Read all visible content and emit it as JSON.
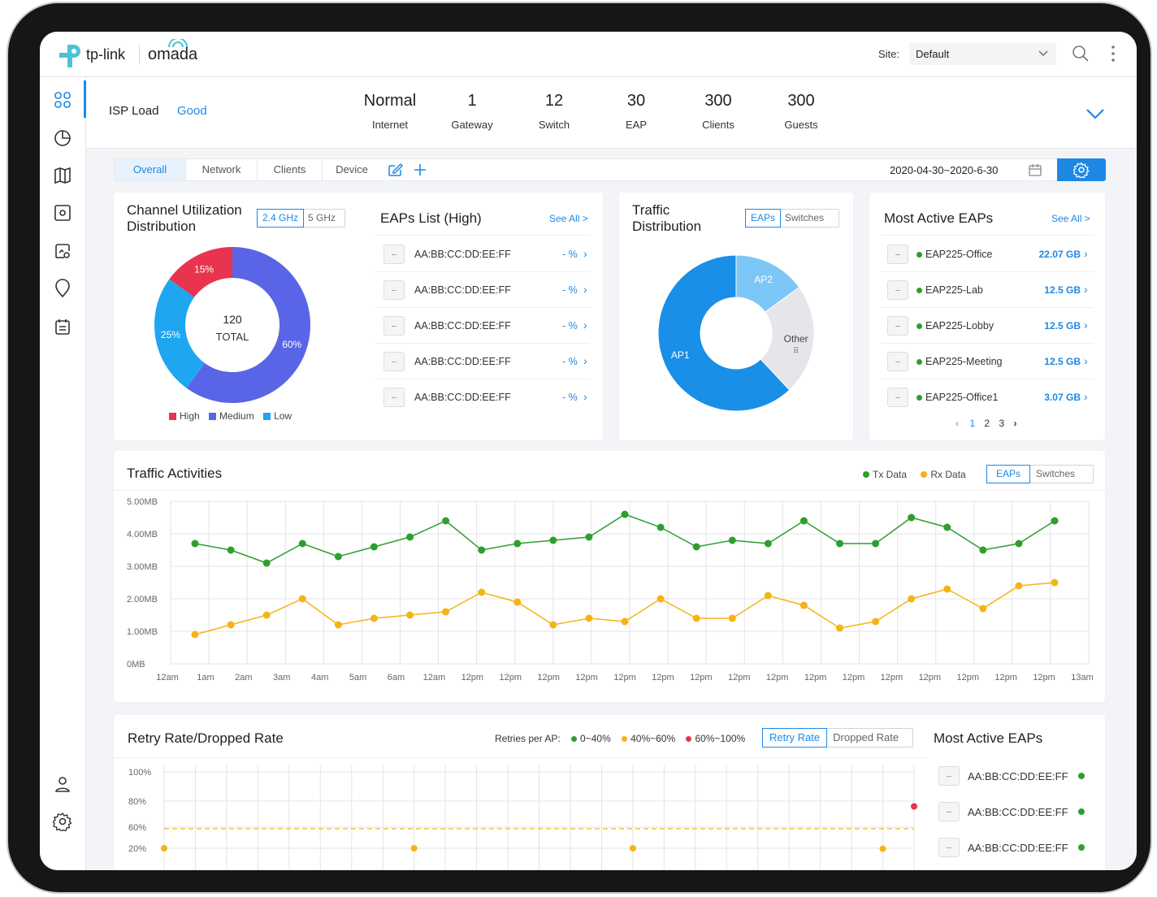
{
  "brand": {
    "logo_text": "tp-link",
    "product": "omada"
  },
  "header": {
    "site_label": "Site:",
    "site_value": "Default"
  },
  "isp": {
    "label": "ISP Load",
    "status": "Good"
  },
  "stats": [
    {
      "value": "Normal",
      "label": "Internet"
    },
    {
      "value": "1",
      "label": "Gateway"
    },
    {
      "value": "12",
      "label": "Switch"
    },
    {
      "value": "30",
      "label": "EAP"
    },
    {
      "value": "300",
      "label": "Clients"
    },
    {
      "value": "300",
      "label": "Guests"
    }
  ],
  "tabs": [
    "Overall",
    "Network",
    "Clients",
    "Device"
  ],
  "date_range": "2020-04-30~2020-6-30",
  "channel": {
    "title_line1": "Channel Utilization",
    "title_line2": "Distribution",
    "band_24": "2.4 GHz",
    "band_5": "5 GHz",
    "total_value": "120",
    "total_label": "TOTAL",
    "slices": [
      {
        "name": "High",
        "value": 15,
        "label": "15%",
        "color": "#e8344e"
      },
      {
        "name": "Medium",
        "value": 60,
        "label": "60%",
        "color": "#5a64e6"
      },
      {
        "name": "Low",
        "value": 25,
        "label": "25%",
        "color": "#1ea6f0"
      }
    ],
    "legend": [
      "High",
      "Medium",
      "Low"
    ]
  },
  "eaps_list": {
    "title": "EAPs List (High)",
    "see_all": "See All >",
    "rows": [
      {
        "mac": "AA:BB:CC:DD:EE:FF",
        "pct": "- %"
      },
      {
        "mac": "AA:BB:CC:DD:EE:FF",
        "pct": "- %"
      },
      {
        "mac": "AA:BB:CC:DD:EE:FF",
        "pct": "- %"
      },
      {
        "mac": "AA:BB:CC:DD:EE:FF",
        "pct": "- %"
      },
      {
        "mac": "AA:BB:CC:DD:EE:FF",
        "pct": "- %"
      }
    ]
  },
  "traffic_dist": {
    "title_line1": "Traffic",
    "title_line2": "Distribution",
    "toggle": [
      "EAPs",
      "Switches"
    ],
    "slices": [
      {
        "name": "AP1",
        "value": 62,
        "color": "#1a8fe8"
      },
      {
        "name": "AP2",
        "value": 15,
        "color": "#7cc7f8"
      },
      {
        "name": "Other",
        "value": 23,
        "color": "#e4e6ea"
      }
    ],
    "other_more": "⠿"
  },
  "most_active": {
    "title": "Most Active EAPs",
    "see_all": "See All >",
    "rows": [
      {
        "name": "EAP225-Office",
        "value": "22.07 GB"
      },
      {
        "name": "EAP225-Lab",
        "value": "12.5 GB"
      },
      {
        "name": "EAP225-Lobby",
        "value": "12.5 GB"
      },
      {
        "name": "EAP225-Meeting",
        "value": "12.5 GB"
      },
      {
        "name": "EAP225-Office1",
        "value": "3.07 GB"
      }
    ],
    "pages": [
      "1",
      "2",
      "3"
    ]
  },
  "traffic": {
    "title": "Traffic Activities",
    "legend_tx": "Tx Data",
    "legend_rx": "Rx Data",
    "toggle": [
      "EAPs",
      "Switches"
    ],
    "chart_data": {
      "type": "line",
      "title": "Traffic Activities",
      "y_ticks": [
        "5.00MB",
        "4.00MB",
        "3.00MB",
        "2.00MB",
        "1.00MB",
        "0MB"
      ],
      "ylim": [
        0,
        5
      ],
      "x_labels": [
        "12am",
        "1am",
        "2am",
        "3am",
        "4am",
        "5am",
        "6am",
        "12am",
        "12pm",
        "12pm",
        "12pm",
        "12pm",
        "12pm",
        "12pm",
        "12pm",
        "12pm",
        "12pm",
        "12pm",
        "12pm",
        "12pm",
        "12pm",
        "12pm",
        "12pm",
        "12pm",
        "13am"
      ],
      "series": [
        {
          "name": "Tx Data",
          "color": "#2e9e2e",
          "values": [
            3.7,
            3.5,
            3.1,
            3.7,
            3.3,
            3.6,
            3.9,
            4.4,
            3.5,
            3.7,
            3.8,
            3.9,
            4.6,
            4.2,
            3.6,
            3.8,
            3.7,
            4.4,
            3.7,
            3.7,
            4.5,
            4.2,
            3.5,
            3.7,
            4.4
          ]
        },
        {
          "name": "Rx Data",
          "color": "#f5b316",
          "values": [
            0.9,
            1.2,
            1.5,
            2.0,
            1.2,
            1.4,
            1.5,
            1.6,
            2.2,
            1.9,
            1.2,
            1.4,
            1.3,
            2.0,
            1.4,
            1.4,
            2.1,
            1.8,
            1.1,
            1.3,
            2.0,
            2.3,
            1.7,
            2.4,
            2.5
          ]
        }
      ]
    }
  },
  "retry": {
    "title": "Retry Rate/Dropped Rate",
    "legend_label": "Retries per AP:",
    "legend": [
      {
        "label": "0~40%",
        "color": "#2e9e2e"
      },
      {
        "label": "40%~60%",
        "color": "#f5b316"
      },
      {
        "label": "60%~100%",
        "color": "#e8344e"
      }
    ],
    "toggle": [
      "Retry Rate",
      "Dropped Rate"
    ],
    "chart_data": {
      "type": "scatter",
      "y_ticks": [
        "100%",
        "80%",
        "60%",
        "20%"
      ],
      "points": [
        {
          "x": 0,
          "y": 20,
          "color": "#f5b316"
        },
        {
          "x": 8,
          "y": 20,
          "color": "#f5b316"
        },
        {
          "x": 15,
          "y": 20,
          "color": "#f5b316"
        },
        {
          "x": 23,
          "y": 19,
          "color": "#f5b316"
        },
        {
          "x": 24,
          "y": 75,
          "color": "#e8344e"
        }
      ],
      "threshold": 60
    }
  },
  "most_active_2": {
    "title": "Most Active EAPs",
    "rows": [
      "AA:BB:CC:DD:EE:FF",
      "AA:BB:CC:DD:EE:FF",
      "AA:BB:CC:DD:EE:FF"
    ]
  }
}
